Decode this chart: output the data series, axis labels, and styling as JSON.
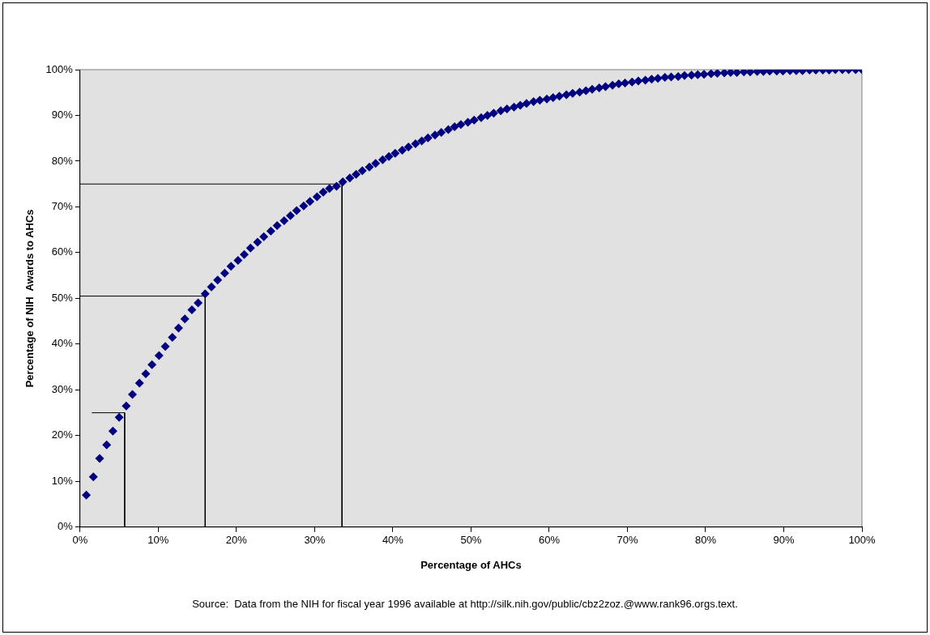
{
  "chart_data": {
    "type": "scatter",
    "xlabel": "Percentage of AHCs",
    "ylabel": "Percentage of NIH  Awards to AHCs",
    "annotations": [
      "Source:  Data from the NIH for fiscal year 1996 available at http://silk.nih.gov/public/cbz2zoz.@www.rank96.orgs.text."
    ],
    "xlim": [
      0,
      100
    ],
    "ylim": [
      0,
      100
    ],
    "xticks": [
      {
        "value": 0,
        "label": "0%"
      },
      {
        "value": 10,
        "label": "10%"
      },
      {
        "value": 20,
        "label": "20%"
      },
      {
        "value": 30,
        "label": "30%"
      },
      {
        "value": 40,
        "label": "40%"
      },
      {
        "value": 50,
        "label": "50%"
      },
      {
        "value": 60,
        "label": "60%"
      },
      {
        "value": 70,
        "label": "70%"
      },
      {
        "value": 80,
        "label": "80%"
      },
      {
        "value": 90,
        "label": "90%"
      },
      {
        "value": 100,
        "label": "100%"
      }
    ],
    "yticks": [
      {
        "value": 0,
        "label": "0%"
      },
      {
        "value": 10,
        "label": "10%"
      },
      {
        "value": 20,
        "label": "20%"
      },
      {
        "value": 30,
        "label": "30%"
      },
      {
        "value": 40,
        "label": "40%"
      },
      {
        "value": 50,
        "label": "50%"
      },
      {
        "value": 60,
        "label": "60%"
      },
      {
        "value": 70,
        "label": "70%"
      },
      {
        "value": 80,
        "label": "80%"
      },
      {
        "value": 90,
        "label": "90%"
      },
      {
        "value": 100,
        "label": "100%"
      }
    ],
    "grid": false,
    "legend": false,
    "marker": "diamond",
    "series": [
      {
        "type": "scatter",
        "color": "#000080",
        "x": [
          0.8,
          1.7,
          2.5,
          3.4,
          4.2,
          5.0,
          5.9,
          6.7,
          7.6,
          8.4,
          9.2,
          10.1,
          10.9,
          11.8,
          12.6,
          13.4,
          14.3,
          15.1,
          16.0,
          16.8,
          17.6,
          18.5,
          19.3,
          20.2,
          21.0,
          21.8,
          22.7,
          23.5,
          24.4,
          25.2,
          26.1,
          26.9,
          27.7,
          28.6,
          29.4,
          30.3,
          31.1,
          31.9,
          32.8,
          33.6,
          34.5,
          35.3,
          36.1,
          37.0,
          37.8,
          38.7,
          39.5,
          40.3,
          41.2,
          42.0,
          42.9,
          43.7,
          44.5,
          45.4,
          46.2,
          47.1,
          47.9,
          48.7,
          49.6,
          50.4,
          51.3,
          52.1,
          52.9,
          53.8,
          54.6,
          55.5,
          56.3,
          57.1,
          58.0,
          58.8,
          59.7,
          60.5,
          61.3,
          62.2,
          63.0,
          63.9,
          64.7,
          65.5,
          66.4,
          67.2,
          68.1,
          68.9,
          69.7,
          70.6,
          71.4,
          72.3,
          73.1,
          73.9,
          74.8,
          75.6,
          76.5,
          77.3,
          78.2,
          79.0,
          79.8,
          80.7,
          81.5,
          82.4,
          83.2,
          84.0,
          84.9,
          85.7,
          86.6,
          87.4,
          88.2,
          89.1,
          89.9,
          90.8,
          91.6,
          92.4,
          93.3,
          94.1,
          95.0,
          95.8,
          96.6,
          97.5,
          98.3,
          99.2,
          100.0
        ],
        "values": [
          7,
          11,
          15,
          18,
          21,
          24,
          26.5,
          29,
          31.5,
          33.5,
          35.5,
          37.5,
          39.5,
          41.5,
          43.5,
          45.5,
          47.5,
          49,
          51,
          52.5,
          54,
          55.5,
          57,
          58.3,
          59.6,
          61,
          62.3,
          63.5,
          64.7,
          65.9,
          67,
          68.1,
          69.2,
          70.2,
          71.2,
          72.2,
          73.2,
          74,
          74.5,
          75.5,
          76.3,
          77.1,
          77.9,
          78.7,
          79.5,
          80.3,
          81,
          81.7,
          82.4,
          83.1,
          83.8,
          84.4,
          85.1,
          85.7,
          86.3,
          86.9,
          87.5,
          88,
          88.5,
          89,
          89.5,
          90,
          90.5,
          91,
          91.4,
          91.8,
          92.2,
          92.6,
          93,
          93.3,
          93.6,
          93.9,
          94.2,
          94.5,
          94.8,
          95.1,
          95.4,
          95.7,
          96,
          96.3,
          96.6,
          96.9,
          97.1,
          97.3,
          97.5,
          97.7,
          97.9,
          98.1,
          98.3,
          98.4,
          98.5,
          98.7,
          98.8,
          98.9,
          99,
          99.1,
          99.2,
          99.3,
          99.4,
          99.4,
          99.5,
          99.5,
          99.6,
          99.6,
          99.7,
          99.7,
          99.7,
          99.8,
          99.8,
          99.8,
          99.9,
          99.9,
          99.9,
          99.9,
          100,
          100,
          100,
          100,
          100
        ]
      },
      {
        "type": "line",
        "color": "#000000",
        "marker": "none",
        "x": [
          1.5,
          5.7,
          5.7
        ],
        "values": [
          25,
          25,
          0
        ]
      },
      {
        "type": "line",
        "color": "#000000",
        "marker": "none",
        "x": [
          0,
          16,
          16
        ],
        "values": [
          50.5,
          50.5,
          0
        ]
      },
      {
        "type": "line",
        "color": "#000000",
        "marker": "none",
        "x": [
          0,
          33.5,
          33.5
        ],
        "values": [
          75,
          75,
          0
        ]
      }
    ]
  }
}
